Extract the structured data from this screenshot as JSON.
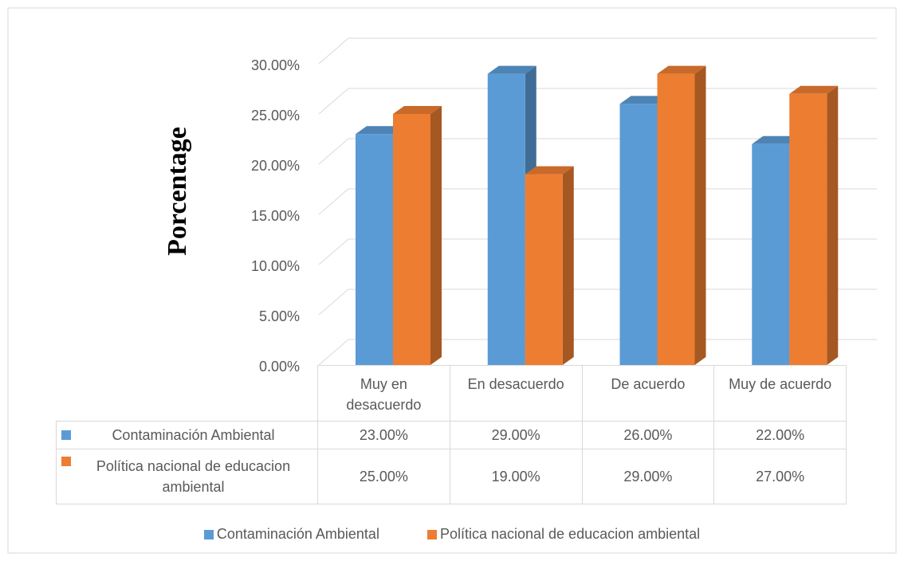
{
  "chart_data": {
    "type": "bar3d",
    "y_label": "Porcentage",
    "categories": [
      "Muy en desacuerdo",
      "En desacuerdo",
      "De acuerdo",
      "Muy de acuerdo"
    ],
    "series": [
      {
        "name": "Contaminación Ambiental",
        "color": "#5b9bd5",
        "values": [
          23,
          29,
          26,
          22
        ],
        "value_labels": [
          "23.00%",
          "29.00%",
          "26.00%",
          "22.00%"
        ]
      },
      {
        "name": "Política nacional de educacion ambiental",
        "color": "#ed7d31",
        "values": [
          25,
          19,
          29,
          27
        ],
        "value_labels": [
          "25.00%",
          "19.00%",
          "29.00%",
          "27.00%"
        ]
      }
    ],
    "ylim": [
      0,
      30
    ],
    "yticks": [
      {
        "value": 0,
        "label": "0.00%"
      },
      {
        "value": 5,
        "label": "5.00%"
      },
      {
        "value": 10,
        "label": "10.00%"
      },
      {
        "value": 15,
        "label": "15.00%"
      },
      {
        "value": 20,
        "label": "20.00%"
      },
      {
        "value": 25,
        "label": "25.00%"
      },
      {
        "value": 30,
        "label": "30.00%"
      }
    ],
    "grid": true,
    "legend": "bottom",
    "data_table": true
  }
}
